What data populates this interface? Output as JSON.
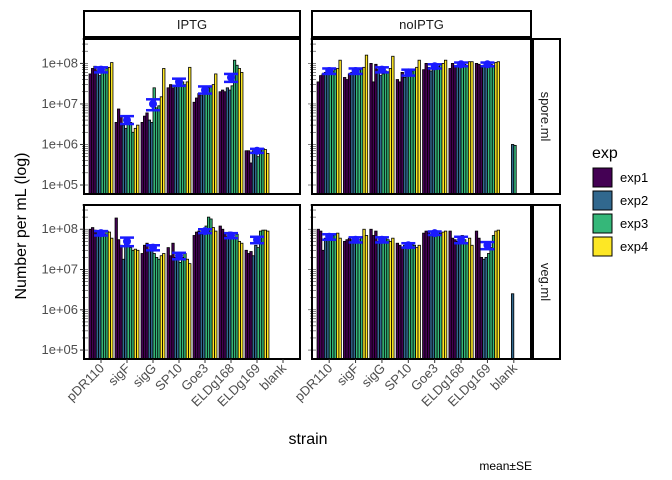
{
  "chart_data": {
    "type": "bar",
    "ylabel": "Number per mL (log)",
    "xlabel": "strain",
    "caption": "mean±SE",
    "y_scale": "log10",
    "y_ticks": [
      "1e+05",
      "1e+06",
      "1e+07",
      "1e+08"
    ],
    "y_tick_values": [
      100000,
      1000000,
      10000000,
      100000000
    ],
    "ylim": [
      60000,
      400000000
    ],
    "legend": {
      "title": "exp",
      "position": "right",
      "entries": [
        {
          "name": "exp1",
          "color": "#440154"
        },
        {
          "name": "exp2",
          "color": "#31688E"
        },
        {
          "name": "exp3",
          "color": "#35B779"
        },
        {
          "name": "exp4",
          "color": "#FDE725"
        }
      ]
    },
    "facet_cols": [
      "IPTG",
      "noIPTG"
    ],
    "facet_rows": [
      "spore.ml",
      "veg.ml"
    ],
    "strains": {
      "IPTG": [
        "pDR110",
        "sigF",
        "sigG",
        "SP10",
        "Goe3",
        "ELDg168",
        "ELDg169",
        "blank"
      ],
      "noIPTG": [
        "pDR110",
        "sigF",
        "sigG",
        "SP10",
        "Goe3",
        "ELDg168",
        "ELDg169",
        "blank"
      ]
    },
    "panels": [
      {
        "col": "IPTG",
        "row": "spore.ml",
        "groups": [
          {
            "strain": "pDR110",
            "mean": 70000000,
            "se_low": 60000000,
            "se_high": 80000000,
            "bars": [
              55000000,
              75000000,
              85000000,
              65000000,
              50000000,
              70000000,
              60000000,
              75000000,
              80000000,
              105000000
            ]
          },
          {
            "strain": "sigF",
            "mean": 4000000,
            "se_low": 3200000,
            "se_high": 5000000,
            "bars": [
              3500000,
              7500000,
              5000000,
              3000000,
              2500000,
              4500000,
              3500000,
              2000000,
              2500000,
              3000000
            ]
          },
          {
            "strain": "sigG",
            "mean": 10000000,
            "se_low": 7000000,
            "se_high": 13000000,
            "bars": [
              3500000,
              5000000,
              6000000,
              4000000,
              3500000,
              25000000,
              8000000,
              9000000,
              15000000,
              75000000
            ]
          },
          {
            "strain": "SP10",
            "mean": 35000000,
            "se_low": 28000000,
            "se_high": 42000000,
            "bars": [
              25000000,
              30000000,
              25000000,
              28000000,
              40000000,
              42000000,
              35000000,
              30000000,
              35000000,
              80000000
            ]
          },
          {
            "strain": "Goe3",
            "mean": 22000000,
            "se_low": 18000000,
            "se_high": 27000000,
            "bars": [
              11000000,
              14000000,
              18000000,
              16000000,
              20000000,
              22000000,
              25000000,
              28000000,
              30000000,
              55000000
            ]
          },
          {
            "strain": "ELDg168",
            "mean": 45000000,
            "se_low": 35000000,
            "se_high": 55000000,
            "bars": [
              20000000,
              22000000,
              20000000,
              25000000,
              22000000,
              28000000,
              120000000,
              90000000,
              75000000,
              60000000
            ]
          },
          {
            "strain": "ELDg169",
            "mean": 700000,
            "se_low": 620000,
            "se_high": 780000,
            "bars": [
              700000,
              700000,
              350000,
              700000,
              650000,
              500000,
              700000,
              800000,
              750000,
              600000
            ]
          }
        ]
      },
      {
        "col": "noIPTG",
        "row": "spore.ml",
        "groups": [
          {
            "strain": "pDR110",
            "mean": 65000000,
            "se_low": 55000000,
            "se_high": 75000000,
            "bars": [
              35000000,
              50000000,
              55000000,
              60000000,
              70000000,
              60000000,
              65000000,
              70000000,
              75000000,
              120000000
            ]
          },
          {
            "strain": "sigF",
            "mean": 65000000,
            "se_low": 55000000,
            "se_high": 75000000,
            "bars": [
              45000000,
              40000000,
              55000000,
              60000000,
              55000000,
              65000000,
              70000000,
              75000000,
              80000000,
              160000000
            ]
          },
          {
            "strain": "sigG",
            "mean": 70000000,
            "se_low": 60000000,
            "se_high": 80000000,
            "bars": [
              100000000,
              35000000,
              95000000,
              70000000,
              50000000,
              55000000,
              65000000,
              60000000,
              75000000,
              150000000
            ]
          },
          {
            "strain": "SP10",
            "mean": 60000000,
            "se_low": 50000000,
            "se_high": 70000000,
            "bars": [
              40000000,
              35000000,
              60000000,
              45000000,
              70000000,
              55000000,
              65000000,
              70000000,
              80000000,
              120000000
            ]
          },
          {
            "strain": "Goe3",
            "mean": 85000000,
            "se_low": 75000000,
            "se_high": 95000000,
            "bars": [
              70000000,
              100000000,
              80000000,
              65000000,
              90000000,
              75000000,
              85000000,
              95000000,
              100000000,
              120000000
            ]
          },
          {
            "strain": "ELDg168",
            "mean": 95000000,
            "se_low": 85000000,
            "se_high": 105000000,
            "bars": [
              75000000,
              100000000,
              85000000,
              90000000,
              95000000,
              100000000,
              95000000,
              90000000,
              110000000,
              110000000
            ]
          },
          {
            "strain": "ELDg169",
            "mean": 95000000,
            "se_low": 85000000,
            "se_high": 105000000,
            "bars": [
              100000000,
              95000000,
              80000000,
              90000000,
              85000000,
              100000000,
              95000000,
              90000000,
              105000000,
              110000000
            ]
          },
          {
            "strain": "blank",
            "mean": null,
            "se_low": null,
            "se_high": null,
            "bars": [
              null,
              null,
              null,
              null,
              1000000,
              950000,
              null,
              null,
              null,
              null
            ]
          }
        ]
      },
      {
        "col": "IPTG",
        "row": "veg.ml",
        "groups": [
          {
            "strain": "pDR110",
            "mean": 80000000,
            "se_low": 70000000,
            "se_high": 90000000,
            "bars": [
              100000000,
              110000000,
              95000000,
              90000000,
              85000000,
              70000000,
              75000000,
              90000000,
              85000000,
              60000000
            ]
          },
          {
            "strain": "sigF",
            "mean": 50000000,
            "se_low": 38000000,
            "se_high": 62000000,
            "bars": [
              190000000,
              55000000,
              40000000,
              18000000,
              50000000,
              40000000,
              35000000,
              30000000,
              32000000,
              30000000
            ]
          },
          {
            "strain": "sigG",
            "mean": 35000000,
            "se_low": 30000000,
            "se_high": 40000000,
            "bars": [
              25000000,
              40000000,
              45000000,
              30000000,
              35000000,
              25000000,
              20000000,
              18000000,
              22000000,
              25000000
            ]
          },
          {
            "strain": "SP10",
            "mean": 22000000,
            "se_low": 18000000,
            "se_high": 26000000,
            "bars": [
              35000000,
              22000000,
              45000000,
              20000000,
              18000000,
              15000000,
              20000000,
              25000000,
              18000000,
              14000000
            ]
          },
          {
            "strain": "Goe3",
            "mean": 90000000,
            "se_low": 80000000,
            "se_high": 100000000,
            "bars": [
              70000000,
              85000000,
              90000000,
              75000000,
              100000000,
              120000000,
              200000000,
              180000000,
              110000000,
              90000000
            ]
          },
          {
            "strain": "ELDg168",
            "mean": 70000000,
            "se_low": 60000000,
            "se_high": 80000000,
            "bars": [
              120000000,
              100000000,
              75000000,
              65000000,
              85000000,
              70000000,
              60000000,
              75000000,
              50000000,
              45000000
            ]
          },
          {
            "strain": "ELDg169",
            "mean": 55000000,
            "se_low": 45000000,
            "se_high": 65000000,
            "bars": [
              30000000,
              25000000,
              28000000,
              22000000,
              40000000,
              35000000,
              90000000,
              95000000,
              95000000,
              90000000
            ]
          }
        ]
      },
      {
        "col": "noIPTG",
        "row": "veg.ml",
        "groups": [
          {
            "strain": "pDR110",
            "mean": 65000000,
            "se_low": 55000000,
            "se_high": 75000000,
            "bars": [
              100000000,
              90000000,
              30000000,
              60000000,
              55000000,
              65000000,
              70000000,
              75000000,
              80000000,
              60000000
            ]
          },
          {
            "strain": "sigF",
            "mean": 55000000,
            "se_low": 47000000,
            "se_high": 63000000,
            "bars": [
              50000000,
              55000000,
              60000000,
              55000000,
              50000000,
              60000000,
              55000000,
              65000000,
              100000000,
              70000000
            ]
          },
          {
            "strain": "sigG",
            "mean": 55000000,
            "se_low": 47000000,
            "se_high": 63000000,
            "bars": [
              100000000,
              70000000,
              90000000,
              50000000,
              45000000,
              55000000,
              60000000,
              55000000,
              50000000,
              60000000
            ]
          },
          {
            "strain": "SP10",
            "mean": 40000000,
            "se_low": 35000000,
            "se_high": 45000000,
            "bars": [
              45000000,
              40000000,
              35000000,
              40000000,
              45000000,
              38000000,
              42000000,
              40000000,
              35000000,
              40000000
            ]
          },
          {
            "strain": "Goe3",
            "mean": 80000000,
            "se_low": 72000000,
            "se_high": 88000000,
            "bars": [
              80000000,
              90000000,
              85000000,
              75000000,
              80000000,
              85000000,
              90000000,
              80000000,
              85000000,
              90000000
            ]
          },
          {
            "strain": "ELDg168",
            "mean": 55000000,
            "se_low": 45000000,
            "se_high": 65000000,
            "bars": [
              90000000,
              60000000,
              55000000,
              50000000,
              65000000,
              70000000,
              55000000,
              45000000,
              60000000,
              40000000
            ]
          },
          {
            "strain": "ELDg169",
            "mean": 40000000,
            "se_low": 32000000,
            "se_high": 48000000,
            "bars": [
              90000000,
              60000000,
              20000000,
              18000000,
              20000000,
              25000000,
              35000000,
              70000000,
              90000000,
              95000000
            ]
          },
          {
            "strain": "blank",
            "mean": null,
            "se_low": null,
            "se_high": null,
            "bars": [
              null,
              null,
              null,
              null,
              2500000,
              null,
              null,
              null,
              null,
              null
            ]
          }
        ]
      }
    ]
  }
}
